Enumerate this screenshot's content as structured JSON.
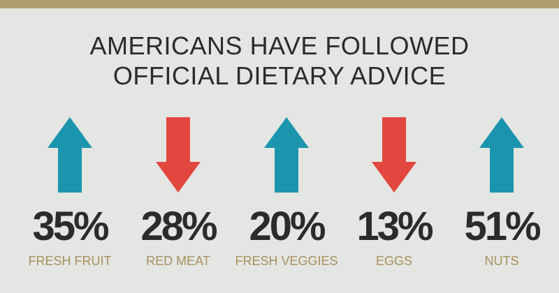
{
  "header": {
    "title_lines": [
      "AMERICANS HAVE FOLLOWED",
      "OFFICIAL DIETARY ADVICE"
    ]
  },
  "colors": {
    "up": "#1b95ae",
    "down": "#e2473f",
    "band": "#b09b6c"
  },
  "items": [
    {
      "value_label": "35%",
      "label": "FRESH FRUIT",
      "direction": "up"
    },
    {
      "value_label": "28%",
      "label": "RED MEAT",
      "direction": "down"
    },
    {
      "value_label": "20%",
      "label": "FRESH VEGGIES",
      "direction": "up"
    },
    {
      "value_label": "13%",
      "label": "EGGS",
      "direction": "down"
    },
    {
      "value_label": "51%",
      "label": "NUTS",
      "direction": "up"
    }
  ]
}
